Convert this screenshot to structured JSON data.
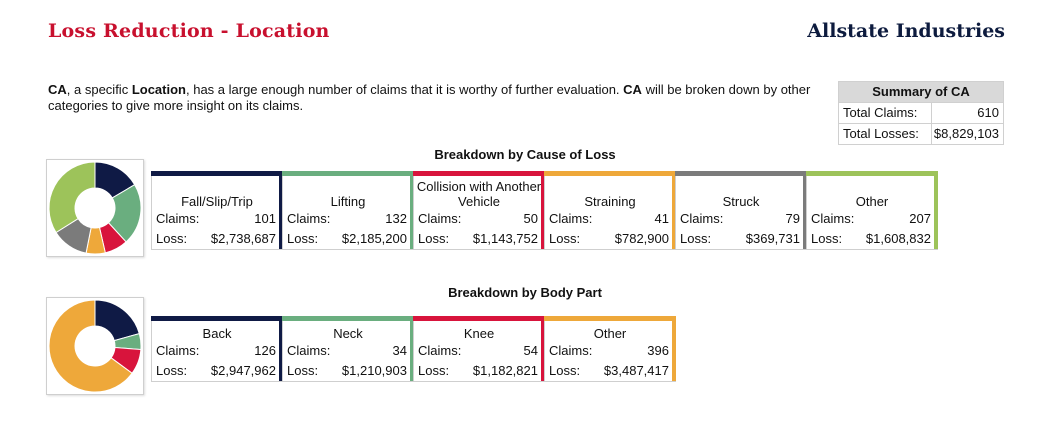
{
  "header": {
    "title": "Loss Reduction - Location",
    "company": "Allstate Industries"
  },
  "intro": {
    "loc1": "CA",
    "text1": ", a specific ",
    "bold2": "Location",
    "text2": ", has a large enough number of claims that it is worthy of further evaluation. ",
    "loc2": "CA",
    "text3": " will be broken down by other categories to give more insight on its claims."
  },
  "summary": {
    "title": "Summary of CA",
    "claims_label": "Total Claims:",
    "claims_value": "610",
    "losses_label": "Total Losses:",
    "losses_value": "$8,829,103"
  },
  "cause": {
    "title": "Breakdown by Cause of Loss",
    "claims_label": "Claims:",
    "loss_label": "Loss:",
    "items": [
      {
        "name": "Fall/Slip/Trip",
        "claims": "101",
        "loss": "$2,738,687",
        "color": "#0f1a45",
        "value": 101
      },
      {
        "name": "Lifting",
        "claims": "132",
        "loss": "$2,185,200",
        "color": "#6aae7f",
        "value": 132
      },
      {
        "name": "Collision with Another Vehicle",
        "claims": "50",
        "loss": "$1,143,752",
        "color": "#d8143c",
        "value": 50
      },
      {
        "name": "Straining",
        "claims": "41",
        "loss": "$782,900",
        "color": "#eea83a",
        "value": 41
      },
      {
        "name": "Struck",
        "claims": "79",
        "loss": "$369,731",
        "color": "#7b7b7b",
        "value": 79
      },
      {
        "name": "Other",
        "claims": "207",
        "loss": "$1,608,832",
        "color": "#9dc35a",
        "value": 207
      }
    ]
  },
  "body_part": {
    "title": "Breakdown by Body Part",
    "claims_label": "Claims:",
    "loss_label": "Loss:",
    "items": [
      {
        "name": "Back",
        "claims": "126",
        "loss": "$2,947,962",
        "color": "#0f1a45",
        "value": 126
      },
      {
        "name": "Neck",
        "claims": "34",
        "loss": "$1,210,903",
        "color": "#6aae7f",
        "value": 34
      },
      {
        "name": "Knee",
        "claims": "54",
        "loss": "$1,182,821",
        "color": "#d8143c",
        "value": 54
      },
      {
        "name": "Other",
        "claims": "396",
        "loss": "$3,487,417",
        "color": "#eea83a",
        "value": 396
      }
    ]
  }
}
